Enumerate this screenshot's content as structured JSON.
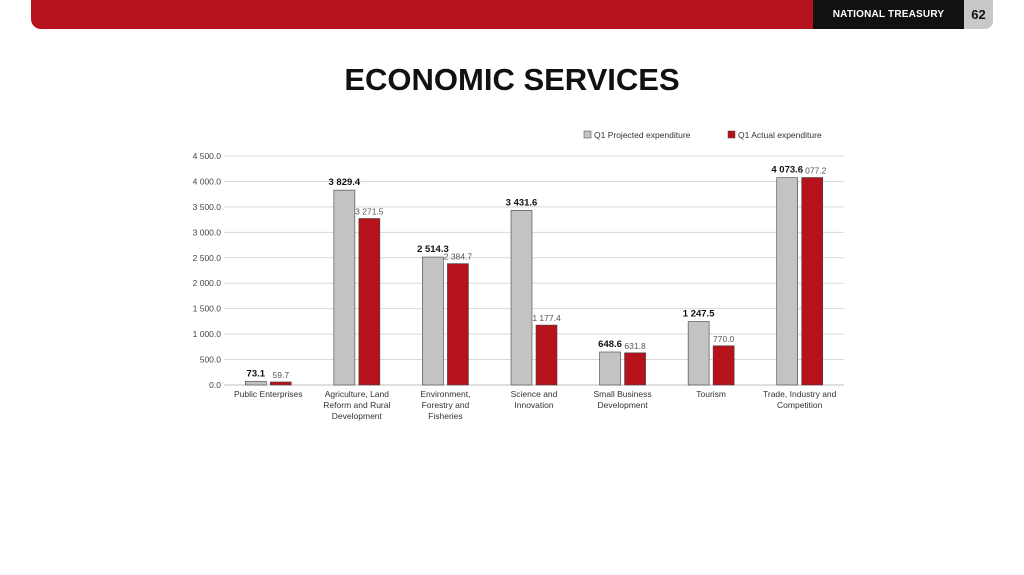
{
  "header": {
    "brand": "NATIONAL TREASURY",
    "page_number": "62"
  },
  "title": "ECONOMIC SERVICES",
  "colors": {
    "accent_red": "#b5121b",
    "projected": "#c3c3c3",
    "actual": "#b5121b"
  },
  "chart_data": {
    "type": "bar",
    "categories": [
      [
        "Public Enterprises"
      ],
      [
        "Agriculture, Land",
        "Reform and Rural",
        "Development"
      ],
      [
        "Environment,",
        "Forestry and",
        "Fisheries"
      ],
      [
        "Science and",
        "Innovation"
      ],
      [
        "Small Business",
        "Development"
      ],
      [
        "Tourism"
      ],
      [
        "Trade, Industry and",
        "Competition"
      ]
    ],
    "series": [
      {
        "name": "Q1 Projected expenditure",
        "color": "#c3c3c3",
        "values": [
          73.1,
          3829.4,
          2514.3,
          3431.6,
          648.6,
          1247.5,
          4073.6
        ],
        "labels": [
          "73.1",
          "3 829.4",
          "2 514.3",
          "3 431.6",
          "648.6",
          "1 247.5",
          "4 073.6"
        ]
      },
      {
        "name": "Q1 Actual expenditure",
        "color": "#b5121b",
        "values": [
          59.7,
          3271.5,
          2384.7,
          1177.4,
          631.8,
          770.0,
          4077.2
        ],
        "labels": [
          "59.7",
          "3 271.5",
          "2 384.7",
          "1 177.4",
          "631.8",
          "770.0",
          "4 077.2"
        ]
      }
    ],
    "ylim": [
      0,
      4500
    ],
    "yticks": [
      "0.0",
      "500.0",
      "1 000.0",
      "1 500.0",
      "2 000.0",
      "2 500.0",
      "3 000.0",
      "3 500.0",
      "4 000.0",
      "4 500.0"
    ],
    "grid": true,
    "legend": "top-right",
    "xlabel": "",
    "ylabel": ""
  }
}
